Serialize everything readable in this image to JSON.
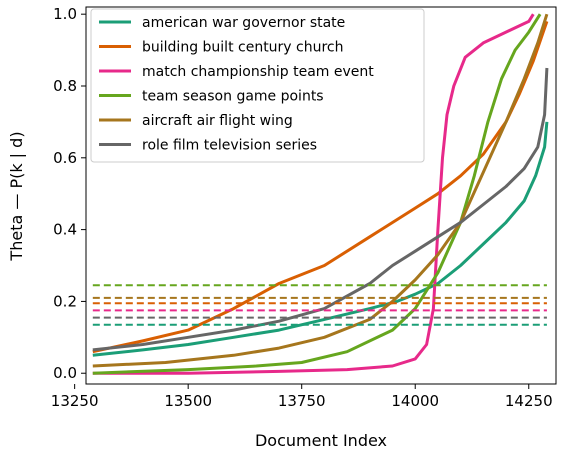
{
  "chart_data": {
    "type": "line",
    "title": "",
    "xlabel": "Document Index",
    "ylabel": "Theta — P(k | d)",
    "xlim": [
      13275,
      14310
    ],
    "ylim": [
      -0.03,
      1.02
    ],
    "xticks": [
      13250,
      13500,
      13750,
      14000,
      14250
    ],
    "yticks": [
      0.0,
      0.2,
      0.4,
      0.6,
      0.8,
      1.0
    ],
    "xtick_labels": [
      "13250",
      "13500",
      "13750",
      "14000",
      "14250"
    ],
    "ytick_labels": [
      "0.0",
      "0.2",
      "0.4",
      "0.6",
      "0.8",
      "1.0"
    ],
    "grid": false,
    "legend_position": "top-left",
    "series": [
      {
        "name": "american war governor state",
        "color": "#1b9e77",
        "threshold": 0.135,
        "points": [
          [
            13290,
            0.05
          ],
          [
            13400,
            0.065
          ],
          [
            13500,
            0.08
          ],
          [
            13600,
            0.1
          ],
          [
            13700,
            0.12
          ],
          [
            13800,
            0.15
          ],
          [
            13900,
            0.18
          ],
          [
            13960,
            0.2
          ],
          [
            14000,
            0.22
          ],
          [
            14050,
            0.25
          ],
          [
            14100,
            0.3
          ],
          [
            14150,
            0.36
          ],
          [
            14200,
            0.42
          ],
          [
            14240,
            0.48
          ],
          [
            14265,
            0.55
          ],
          [
            14285,
            0.63
          ],
          [
            14290,
            0.7
          ]
        ]
      },
      {
        "name": "building built century church",
        "color": "#d95f02",
        "threshold": 0.195,
        "points": [
          [
            13290,
            0.06
          ],
          [
            13400,
            0.09
          ],
          [
            13500,
            0.12
          ],
          [
            13600,
            0.18
          ],
          [
            13700,
            0.25
          ],
          [
            13800,
            0.3
          ],
          [
            13900,
            0.38
          ],
          [
            14000,
            0.46
          ],
          [
            14050,
            0.5
          ],
          [
            14100,
            0.55
          ],
          [
            14150,
            0.61
          ],
          [
            14200,
            0.7
          ],
          [
            14230,
            0.78
          ],
          [
            14260,
            0.87
          ],
          [
            14290,
            0.98
          ]
        ]
      },
      {
        "name": "match championship team event",
        "color": "#e7298a",
        "threshold": 0.175,
        "points": [
          [
            13290,
            0.0
          ],
          [
            13500,
            0.0
          ],
          [
            13700,
            0.005
          ],
          [
            13850,
            0.01
          ],
          [
            13950,
            0.02
          ],
          [
            14000,
            0.04
          ],
          [
            14025,
            0.08
          ],
          [
            14040,
            0.18
          ],
          [
            14050,
            0.4
          ],
          [
            14060,
            0.6
          ],
          [
            14070,
            0.72
          ],
          [
            14085,
            0.8
          ],
          [
            14110,
            0.88
          ],
          [
            14150,
            0.92
          ],
          [
            14200,
            0.95
          ],
          [
            14250,
            0.98
          ],
          [
            14260,
            1.0
          ]
        ]
      },
      {
        "name": "team season game points",
        "color": "#66a61e",
        "threshold": 0.245,
        "points": [
          [
            13290,
            0.0
          ],
          [
            13500,
            0.01
          ],
          [
            13650,
            0.02
          ],
          [
            13750,
            0.03
          ],
          [
            13850,
            0.06
          ],
          [
            13950,
            0.12
          ],
          [
            14000,
            0.18
          ],
          [
            14050,
            0.28
          ],
          [
            14100,
            0.42
          ],
          [
            14130,
            0.55
          ],
          [
            14160,
            0.7
          ],
          [
            14190,
            0.82
          ],
          [
            14220,
            0.9
          ],
          [
            14250,
            0.95
          ],
          [
            14275,
            1.0
          ]
        ]
      },
      {
        "name": "aircraft air flight wing",
        "color": "#a6761d",
        "threshold": 0.21,
        "points": [
          [
            13290,
            0.02
          ],
          [
            13450,
            0.03
          ],
          [
            13600,
            0.05
          ],
          [
            13700,
            0.07
          ],
          [
            13800,
            0.1
          ],
          [
            13900,
            0.15
          ],
          [
            13950,
            0.2
          ],
          [
            14000,
            0.26
          ],
          [
            14050,
            0.33
          ],
          [
            14100,
            0.42
          ],
          [
            14150,
            0.56
          ],
          [
            14200,
            0.7
          ],
          [
            14240,
            0.82
          ],
          [
            14270,
            0.92
          ],
          [
            14290,
            1.0
          ]
        ]
      },
      {
        "name": "role film television series",
        "color": "#666666",
        "threshold": 0.155,
        "points": [
          [
            13290,
            0.065
          ],
          [
            13400,
            0.08
          ],
          [
            13500,
            0.1
          ],
          [
            13600,
            0.12
          ],
          [
            13700,
            0.145
          ],
          [
            13800,
            0.18
          ],
          [
            13900,
            0.25
          ],
          [
            13950,
            0.3
          ],
          [
            14000,
            0.34
          ],
          [
            14050,
            0.38
          ],
          [
            14100,
            0.42
          ],
          [
            14150,
            0.47
          ],
          [
            14200,
            0.52
          ],
          [
            14240,
            0.57
          ],
          [
            14270,
            0.63
          ],
          [
            14285,
            0.72
          ],
          [
            14290,
            0.85
          ]
        ]
      }
    ]
  }
}
